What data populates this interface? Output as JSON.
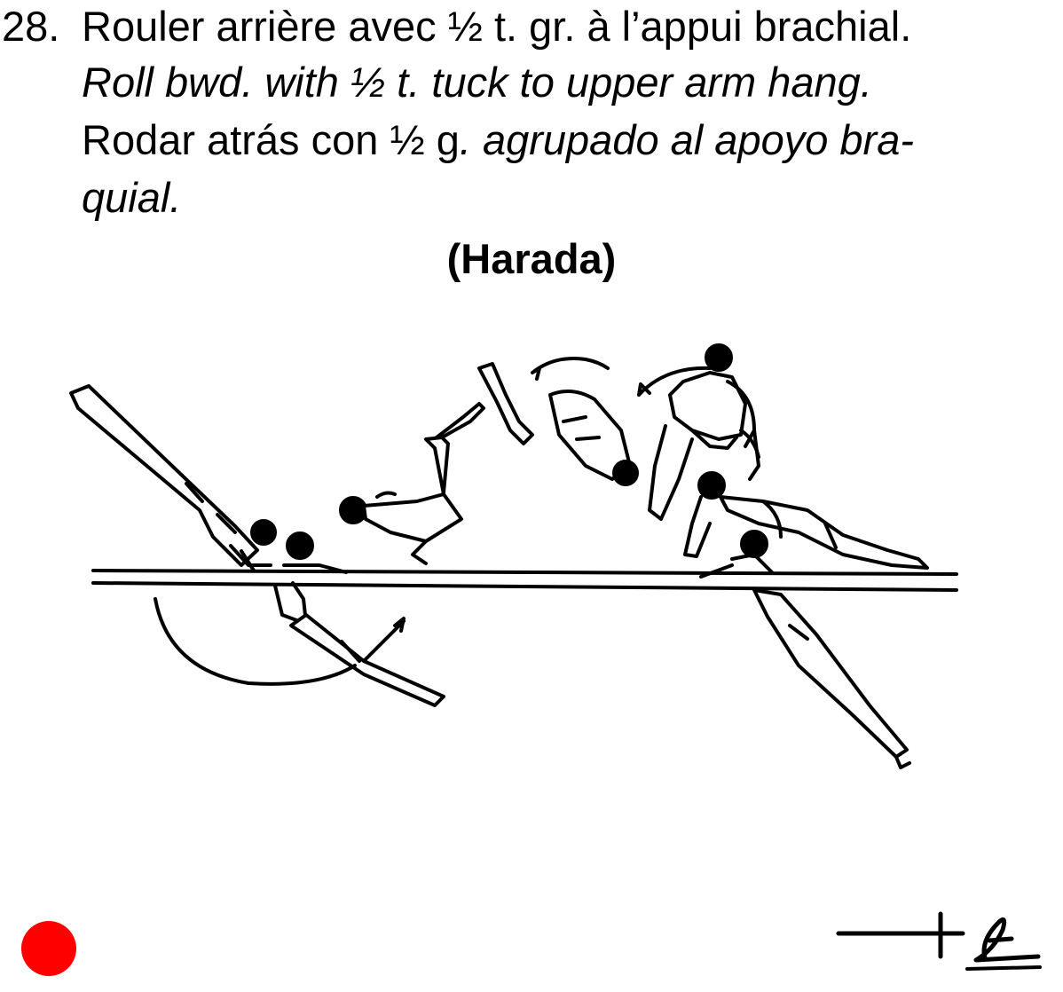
{
  "entry": {
    "number": "28.",
    "french": "Rouler arrière avec ½ t. gr. à l’appui brachial.",
    "english": "Roll bwd. with ½ t. tuck to upper arm hang.",
    "spanish_upright": "Rodar atrás con ½ g",
    "spanish_italic": ". agrupado al apoyo bra-",
    "spanish_continued": "quial.",
    "author": "(Harada)"
  },
  "illustration": {
    "icon": "gymnast-parallel-bars-figure"
  },
  "marker": {
    "color": "#ff0000",
    "icon": "red-dot"
  },
  "symbol": {
    "icon": "element-notation-symbol"
  }
}
